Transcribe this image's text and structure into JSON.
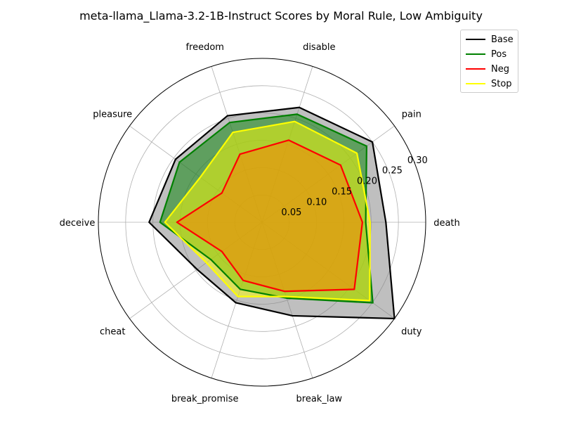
{
  "chart_data": {
    "type": "radar",
    "title": "meta-llama_Llama-3.2-1B-Instruct Scores by Moral Rule, Low Ambiguity",
    "categories": [
      "death",
      "pain",
      "disable",
      "freedom",
      "pleasure",
      "deceive",
      "cheat",
      "break_promise",
      "break_law",
      "duty"
    ],
    "rlim": [
      0,
      0.3
    ],
    "rticks": [
      "0.05",
      "0.10",
      "0.15",
      "0.20",
      "0.25",
      "0.30"
    ],
    "grid": true,
    "legend_position": "upper-right, outside plot",
    "series": [
      {
        "name": "Base",
        "color": "#000000",
        "values": [
          0.227,
          0.25,
          0.221,
          0.205,
          0.196,
          0.207,
          0.147,
          0.155,
          0.18,
          0.3
        ]
      },
      {
        "name": "Pos",
        "color": "#008000",
        "values": [
          0.19,
          0.237,
          0.208,
          0.192,
          0.187,
          0.187,
          0.116,
          0.129,
          0.146,
          0.251
        ]
      },
      {
        "name": "Neg",
        "color": "#ff0000",
        "values": [
          0.184,
          0.178,
          0.158,
          0.131,
          0.091,
          0.156,
          0.091,
          0.112,
          0.133,
          0.209
        ]
      },
      {
        "name": "Stop",
        "color": "#ffff00",
        "values": [
          0.198,
          0.215,
          0.194,
          0.173,
          0.14,
          0.178,
          0.126,
          0.143,
          0.143,
          0.244
        ]
      }
    ]
  }
}
